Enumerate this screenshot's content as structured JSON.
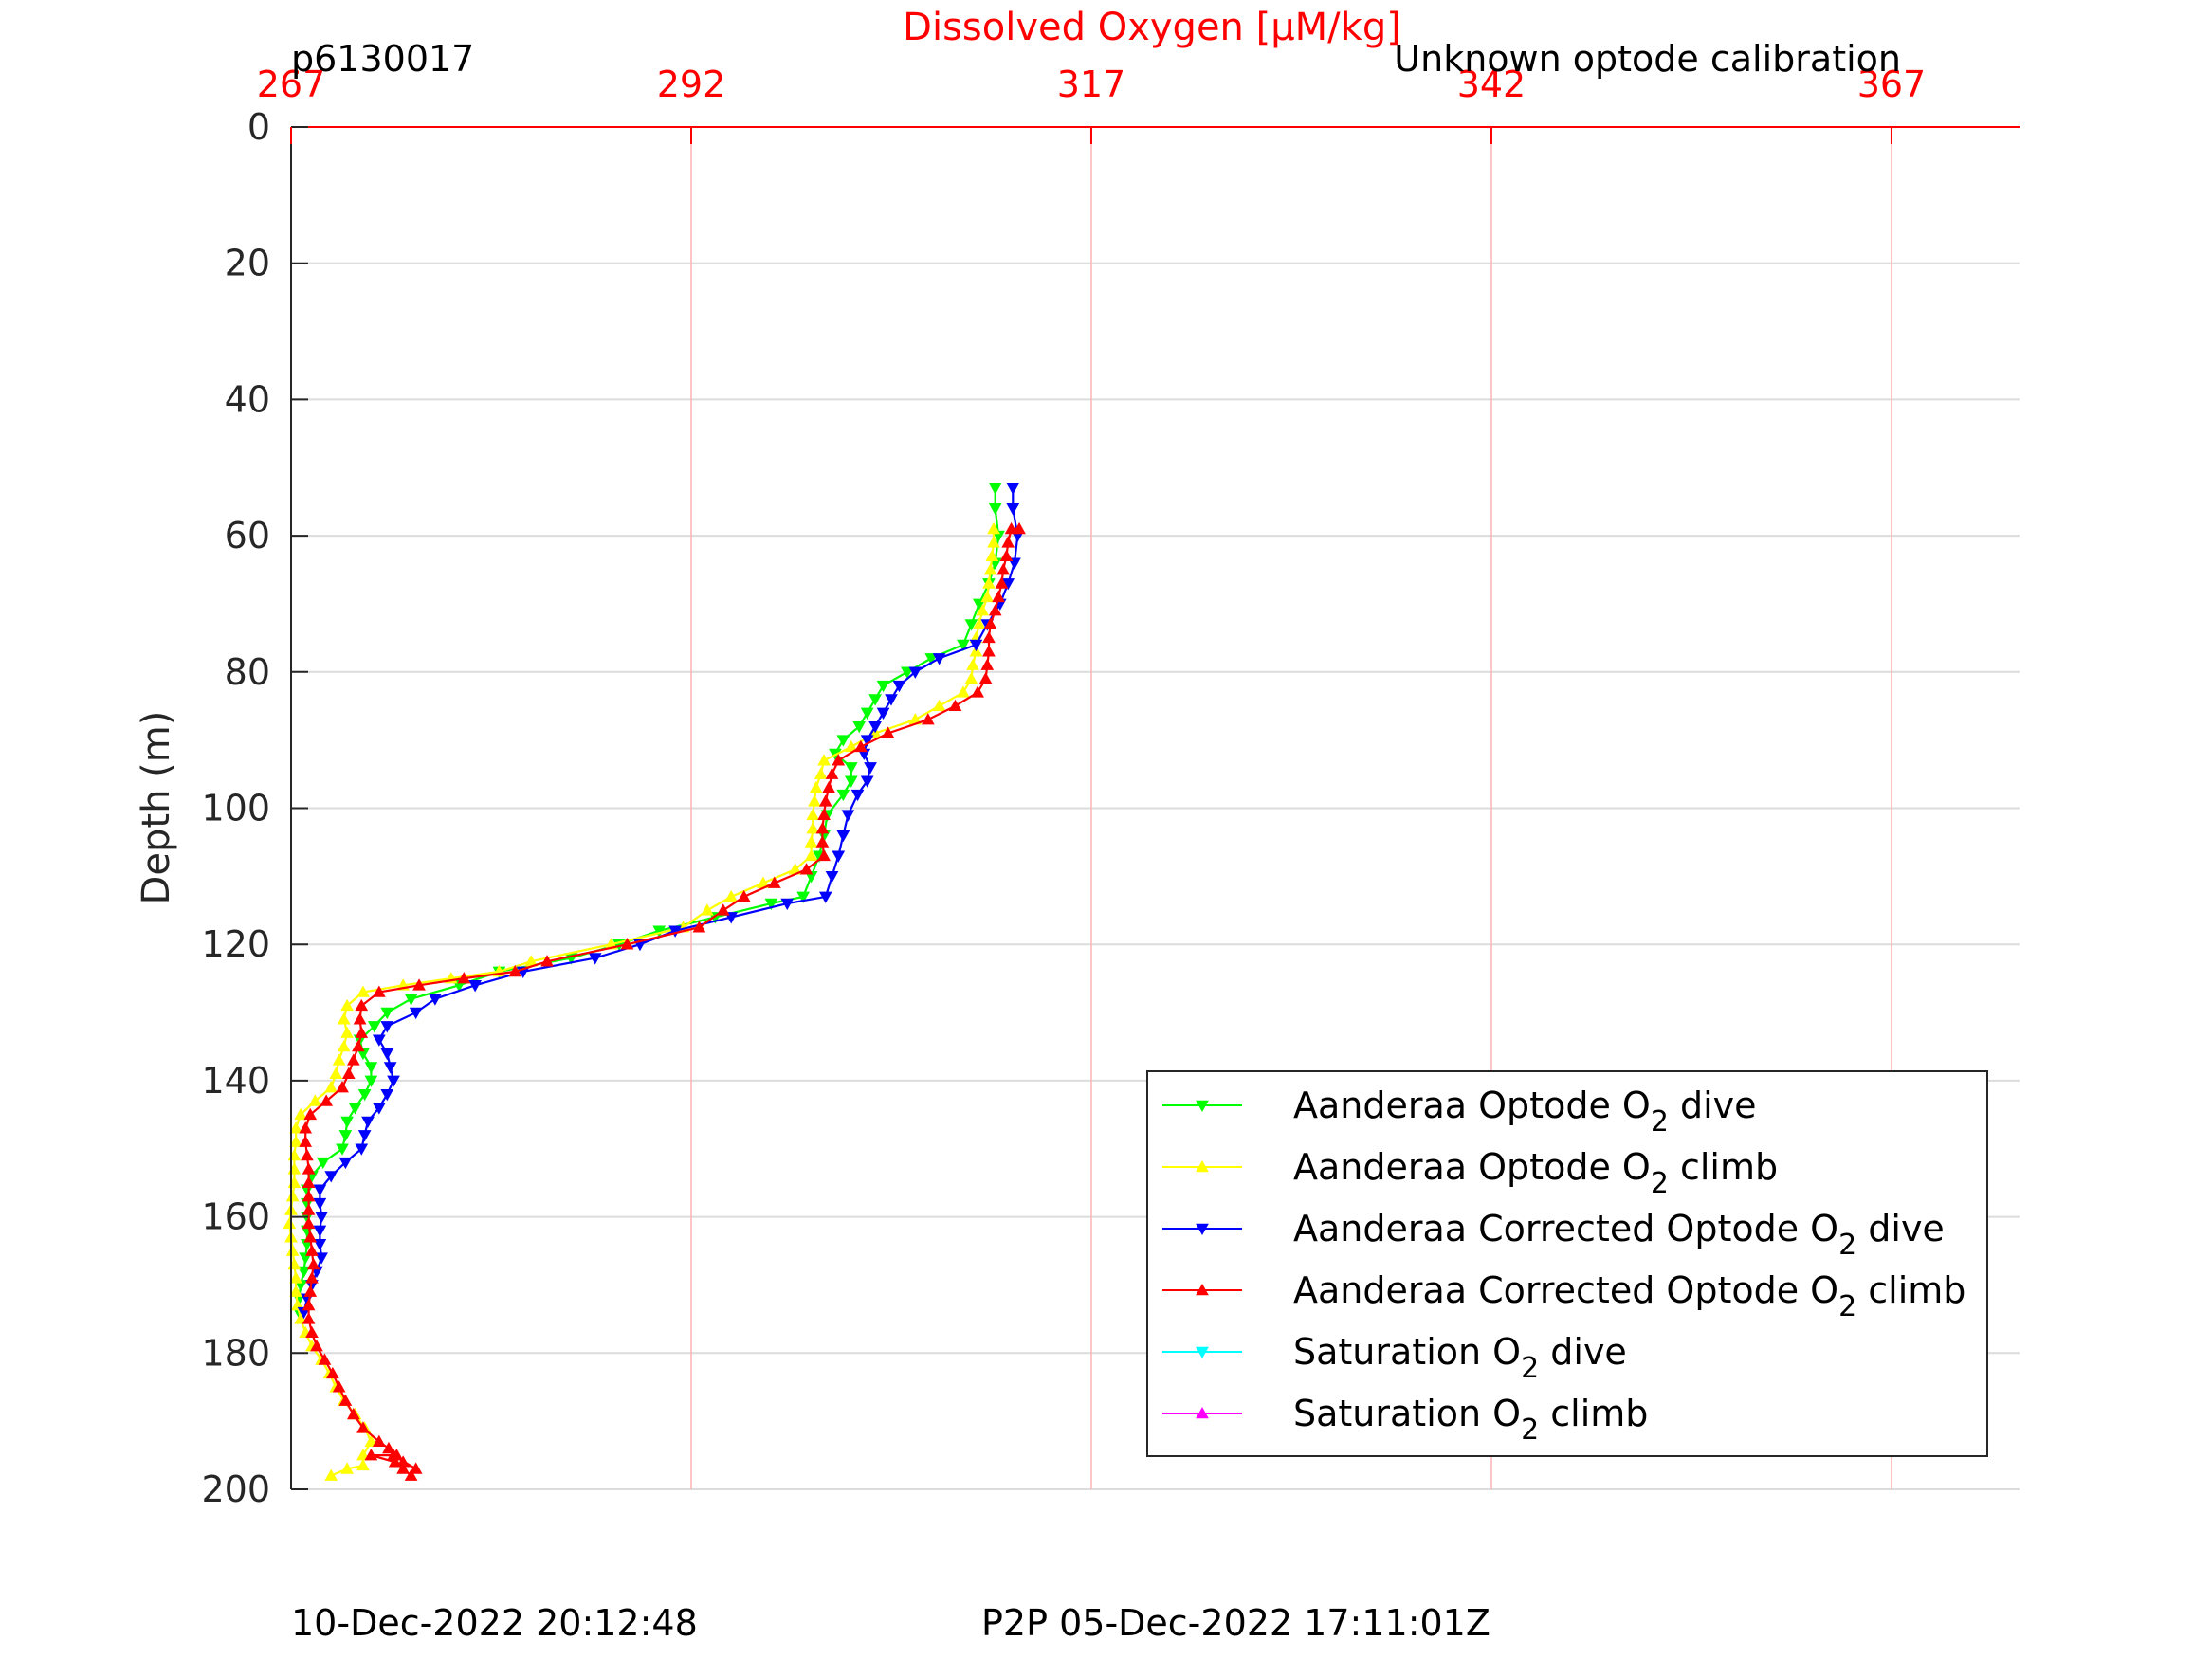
{
  "header": {
    "glider_id": "p6130017",
    "calibration_note": "Unknown optode calibration"
  },
  "footer": {
    "left_timestamp": "10-Dec-2022 20:12:48",
    "right_timestamp": "P2P 05-Dec-2022 17:11:01Z"
  },
  "colors": {
    "oxygen_axis": "#ff0000",
    "grid": "#dddddd",
    "axis": "#262626"
  },
  "chart_data": {
    "type": "line",
    "title": "Dissolved Oxygen [μM/kg]",
    "xlabel": "Dissolved Oxygen [μM/kg]",
    "ylabel": "Depth (m)",
    "xlim": [
      267,
      375
    ],
    "ylim": [
      0,
      200
    ],
    "y_reversed": true,
    "x_ticks": [
      "267",
      "292",
      "317",
      "342",
      "367"
    ],
    "y_ticks": [
      "0",
      "20",
      "40",
      "60",
      "80",
      "100",
      "120",
      "140",
      "160",
      "180",
      "200"
    ],
    "grid": true,
    "legend_position": "bottom-right",
    "series": [
      {
        "name": "Aanderaa Optode O2 dive",
        "label_main": "Aanderaa Optode O",
        "label_suffix": " dive",
        "color": "#00ff00",
        "marker": "down",
        "points": [
          [
            311.0,
            53
          ],
          [
            311.0,
            56
          ],
          [
            311.2,
            60
          ],
          [
            311.0,
            64
          ],
          [
            310.6,
            67
          ],
          [
            310.0,
            70
          ],
          [
            309.5,
            73
          ],
          [
            309.0,
            76
          ],
          [
            307,
            78
          ],
          [
            305.5,
            80
          ],
          [
            304,
            82
          ],
          [
            303.5,
            84
          ],
          [
            303,
            86
          ],
          [
            302.5,
            88
          ],
          [
            301.5,
            90
          ],
          [
            301,
            92
          ],
          [
            302,
            94
          ],
          [
            302,
            96
          ],
          [
            301.5,
            98
          ],
          [
            300.5,
            101
          ],
          [
            300.3,
            104
          ],
          [
            300,
            107
          ],
          [
            299.5,
            110
          ],
          [
            299,
            113
          ],
          [
            297,
            114
          ],
          [
            293.5,
            116
          ],
          [
            290,
            118
          ],
          [
            287.5,
            120
          ],
          [
            284.5,
            122
          ],
          [
            280,
            124
          ],
          [
            277.5,
            126
          ],
          [
            274.5,
            128
          ],
          [
            273,
            130
          ],
          [
            272.2,
            132
          ],
          [
            271.3,
            134
          ],
          [
            271.5,
            136
          ],
          [
            272,
            138
          ],
          [
            272,
            140
          ],
          [
            271.6,
            142
          ],
          [
            271,
            144
          ],
          [
            270.5,
            146
          ],
          [
            270.4,
            148
          ],
          [
            270.2,
            150
          ],
          [
            269,
            152
          ],
          [
            268.3,
            154
          ],
          [
            268,
            156
          ],
          [
            268,
            158
          ],
          [
            268,
            160
          ],
          [
            268,
            162
          ],
          [
            268,
            164
          ],
          [
            267.9,
            166
          ],
          [
            267.8,
            168
          ],
          [
            267.6,
            170
          ],
          [
            267.5,
            172
          ],
          [
            267.5,
            174
          ]
        ]
      },
      {
        "name": "Aanderaa Optode O2 climb",
        "label_main": "Aanderaa Optode O",
        "label_suffix": " climb",
        "color": "#ffff00",
        "marker": "up",
        "points": [
          [
            269.5,
            198
          ],
          [
            270.5,
            197
          ],
          [
            271.5,
            196.5
          ],
          [
            271.5,
            195
          ],
          [
            272,
            193
          ],
          [
            271.6,
            191
          ],
          [
            271,
            189
          ],
          [
            270.3,
            187
          ],
          [
            269.8,
            185
          ],
          [
            269.4,
            183
          ],
          [
            268.9,
            181
          ],
          [
            268.3,
            179
          ],
          [
            267.9,
            177
          ],
          [
            267.6,
            175
          ],
          [
            267.4,
            173
          ],
          [
            267.3,
            171
          ],
          [
            267.3,
            169
          ],
          [
            267.2,
            167
          ],
          [
            267.1,
            165
          ],
          [
            267.0,
            163
          ],
          [
            266.9,
            161
          ],
          [
            267.0,
            159
          ],
          [
            267.1,
            157
          ],
          [
            267.2,
            155
          ],
          [
            267.2,
            153
          ],
          [
            267.2,
            151
          ],
          [
            267.3,
            149
          ],
          [
            267.3,
            147
          ],
          [
            267.6,
            145
          ],
          [
            268.5,
            143
          ],
          [
            269.5,
            141
          ],
          [
            269.8,
            139
          ],
          [
            270.0,
            137
          ],
          [
            270.3,
            135
          ],
          [
            270.5,
            133
          ],
          [
            270.3,
            131
          ],
          [
            270.5,
            129
          ],
          [
            271.5,
            127
          ],
          [
            274,
            126
          ],
          [
            277,
            125
          ],
          [
            280,
            124
          ],
          [
            282,
            122.5
          ],
          [
            287,
            120
          ],
          [
            291.5,
            117.5
          ],
          [
            293,
            115
          ],
          [
            294.5,
            113
          ],
          [
            296.5,
            111
          ],
          [
            298.5,
            109
          ],
          [
            299.5,
            107
          ],
          [
            299.5,
            105
          ],
          [
            299.6,
            103
          ],
          [
            299.6,
            101
          ],
          [
            299.7,
            99
          ],
          [
            299.8,
            97
          ],
          [
            300.1,
            95
          ],
          [
            300.3,
            93
          ],
          [
            302,
            91
          ],
          [
            303.5,
            89
          ],
          [
            306,
            87
          ],
          [
            307.5,
            85
          ],
          [
            309,
            83
          ],
          [
            309.5,
            81
          ],
          [
            309.6,
            79
          ],
          [
            309.8,
            77
          ],
          [
            309.8,
            75
          ],
          [
            310,
            73
          ],
          [
            310.2,
            71
          ],
          [
            310.5,
            69
          ],
          [
            310.6,
            67
          ],
          [
            310.7,
            65
          ],
          [
            310.8,
            63
          ],
          [
            310.9,
            61
          ],
          [
            310.9,
            59
          ]
        ]
      },
      {
        "name": "Aanderaa Corrected Optode O2 dive",
        "label_main": "Aanderaa Corrected Optode O",
        "label_suffix": " dive",
        "color": "#0000ff",
        "marker": "down",
        "points": [
          [
            312.1,
            53
          ],
          [
            312.1,
            56
          ],
          [
            312.4,
            60
          ],
          [
            312.2,
            64
          ],
          [
            311.8,
            67
          ],
          [
            311.3,
            70
          ],
          [
            310.5,
            73
          ],
          [
            309.8,
            76
          ],
          [
            307.5,
            78
          ],
          [
            306,
            80
          ],
          [
            305,
            82
          ],
          [
            304.5,
            84
          ],
          [
            304,
            86
          ],
          [
            303.5,
            88
          ],
          [
            303,
            90
          ],
          [
            302.8,
            92
          ],
          [
            303.2,
            94
          ],
          [
            303,
            96
          ],
          [
            302.4,
            98
          ],
          [
            301.8,
            101
          ],
          [
            301.5,
            104
          ],
          [
            301.2,
            107
          ],
          [
            300.8,
            110
          ],
          [
            300.4,
            113
          ],
          [
            298,
            114
          ],
          [
            294.5,
            116
          ],
          [
            291,
            118
          ],
          [
            288.8,
            120
          ],
          [
            286,
            122
          ],
          [
            281.5,
            124
          ],
          [
            278.5,
            126
          ],
          [
            276,
            128
          ],
          [
            274.8,
            130
          ],
          [
            273,
            132
          ],
          [
            272.5,
            134
          ],
          [
            273,
            136
          ],
          [
            273.2,
            138
          ],
          [
            273.4,
            140
          ],
          [
            273,
            142
          ],
          [
            272.5,
            144
          ],
          [
            271.8,
            146
          ],
          [
            271.6,
            148
          ],
          [
            271.4,
            150
          ],
          [
            270.4,
            152
          ],
          [
            269.5,
            154
          ],
          [
            268.8,
            156
          ],
          [
            268.8,
            158
          ],
          [
            268.9,
            160
          ],
          [
            268.8,
            162
          ],
          [
            268.8,
            164
          ],
          [
            268.9,
            166
          ],
          [
            268.6,
            168
          ],
          [
            268.3,
            170
          ],
          [
            268.0,
            172
          ],
          [
            267.8,
            174
          ]
        ]
      },
      {
        "name": "Aanderaa Corrected Optode O2 climb",
        "label_main": "Aanderaa Corrected Optode O",
        "label_suffix": " climb",
        "color": "#ff0000",
        "marker": "up",
        "points": [
          [
            274.5,
            198
          ],
          [
            274,
            197
          ],
          [
            273.5,
            196
          ],
          [
            272,
            195
          ],
          [
            273.4,
            195
          ],
          [
            274.8,
            197
          ],
          [
            274.0,
            196
          ],
          [
            273.6,
            195
          ],
          [
            273.1,
            194
          ],
          [
            272.5,
            193
          ],
          [
            271.5,
            191
          ],
          [
            270.9,
            189
          ],
          [
            270.4,
            187
          ],
          [
            270.0,
            185
          ],
          [
            269.6,
            183
          ],
          [
            269.1,
            181
          ],
          [
            268.6,
            179
          ],
          [
            268.3,
            177
          ],
          [
            268.1,
            175
          ],
          [
            268.1,
            173
          ],
          [
            268.2,
            171
          ],
          [
            268.3,
            169
          ],
          [
            268.4,
            167
          ],
          [
            268.3,
            165
          ],
          [
            268.2,
            163
          ],
          [
            268.1,
            161
          ],
          [
            268.1,
            159
          ],
          [
            268.1,
            157
          ],
          [
            268.1,
            155
          ],
          [
            268.1,
            153
          ],
          [
            268.0,
            151
          ],
          [
            267.9,
            149
          ],
          [
            267.9,
            147
          ],
          [
            268.2,
            145
          ],
          [
            269.2,
            143
          ],
          [
            270.2,
            141
          ],
          [
            270.6,
            139
          ],
          [
            270.9,
            137
          ],
          [
            271.2,
            135
          ],
          [
            271.4,
            133
          ],
          [
            271.3,
            131
          ],
          [
            271.4,
            129
          ],
          [
            272.5,
            127
          ],
          [
            275,
            126
          ],
          [
            277.8,
            125
          ],
          [
            281,
            124
          ],
          [
            283,
            122.5
          ],
          [
            288,
            120
          ],
          [
            292.5,
            117.5
          ],
          [
            294,
            115
          ],
          [
            295.3,
            113
          ],
          [
            297.2,
            111
          ],
          [
            299.2,
            109
          ],
          [
            300.3,
            107
          ],
          [
            300.2,
            105
          ],
          [
            300.2,
            103
          ],
          [
            300.3,
            101
          ],
          [
            300.4,
            99
          ],
          [
            300.6,
            97
          ],
          [
            300.8,
            95
          ],
          [
            301.2,
            93
          ],
          [
            302.6,
            91
          ],
          [
            304.3,
            89
          ],
          [
            306.8,
            87
          ],
          [
            308.5,
            85
          ],
          [
            309.9,
            83
          ],
          [
            310.4,
            81
          ],
          [
            310.5,
            79
          ],
          [
            310.6,
            77
          ],
          [
            310.6,
            75
          ],
          [
            310.7,
            73
          ],
          [
            311.0,
            71
          ],
          [
            311.2,
            69
          ],
          [
            311.4,
            67
          ],
          [
            311.5,
            65
          ],
          [
            311.7,
            63
          ],
          [
            311.8,
            61
          ],
          [
            312.0,
            59
          ],
          [
            312.5,
            59
          ]
        ]
      },
      {
        "name": "Saturation O2 dive",
        "label_main": "Saturation O",
        "label_suffix": " dive",
        "color": "#00ffff",
        "marker": "down",
        "points": []
      },
      {
        "name": "Saturation O2 climb",
        "label_main": "Saturation O",
        "label_suffix": " climb",
        "color": "#ff00ff",
        "marker": "up",
        "points": []
      }
    ],
    "subscript": "2"
  }
}
